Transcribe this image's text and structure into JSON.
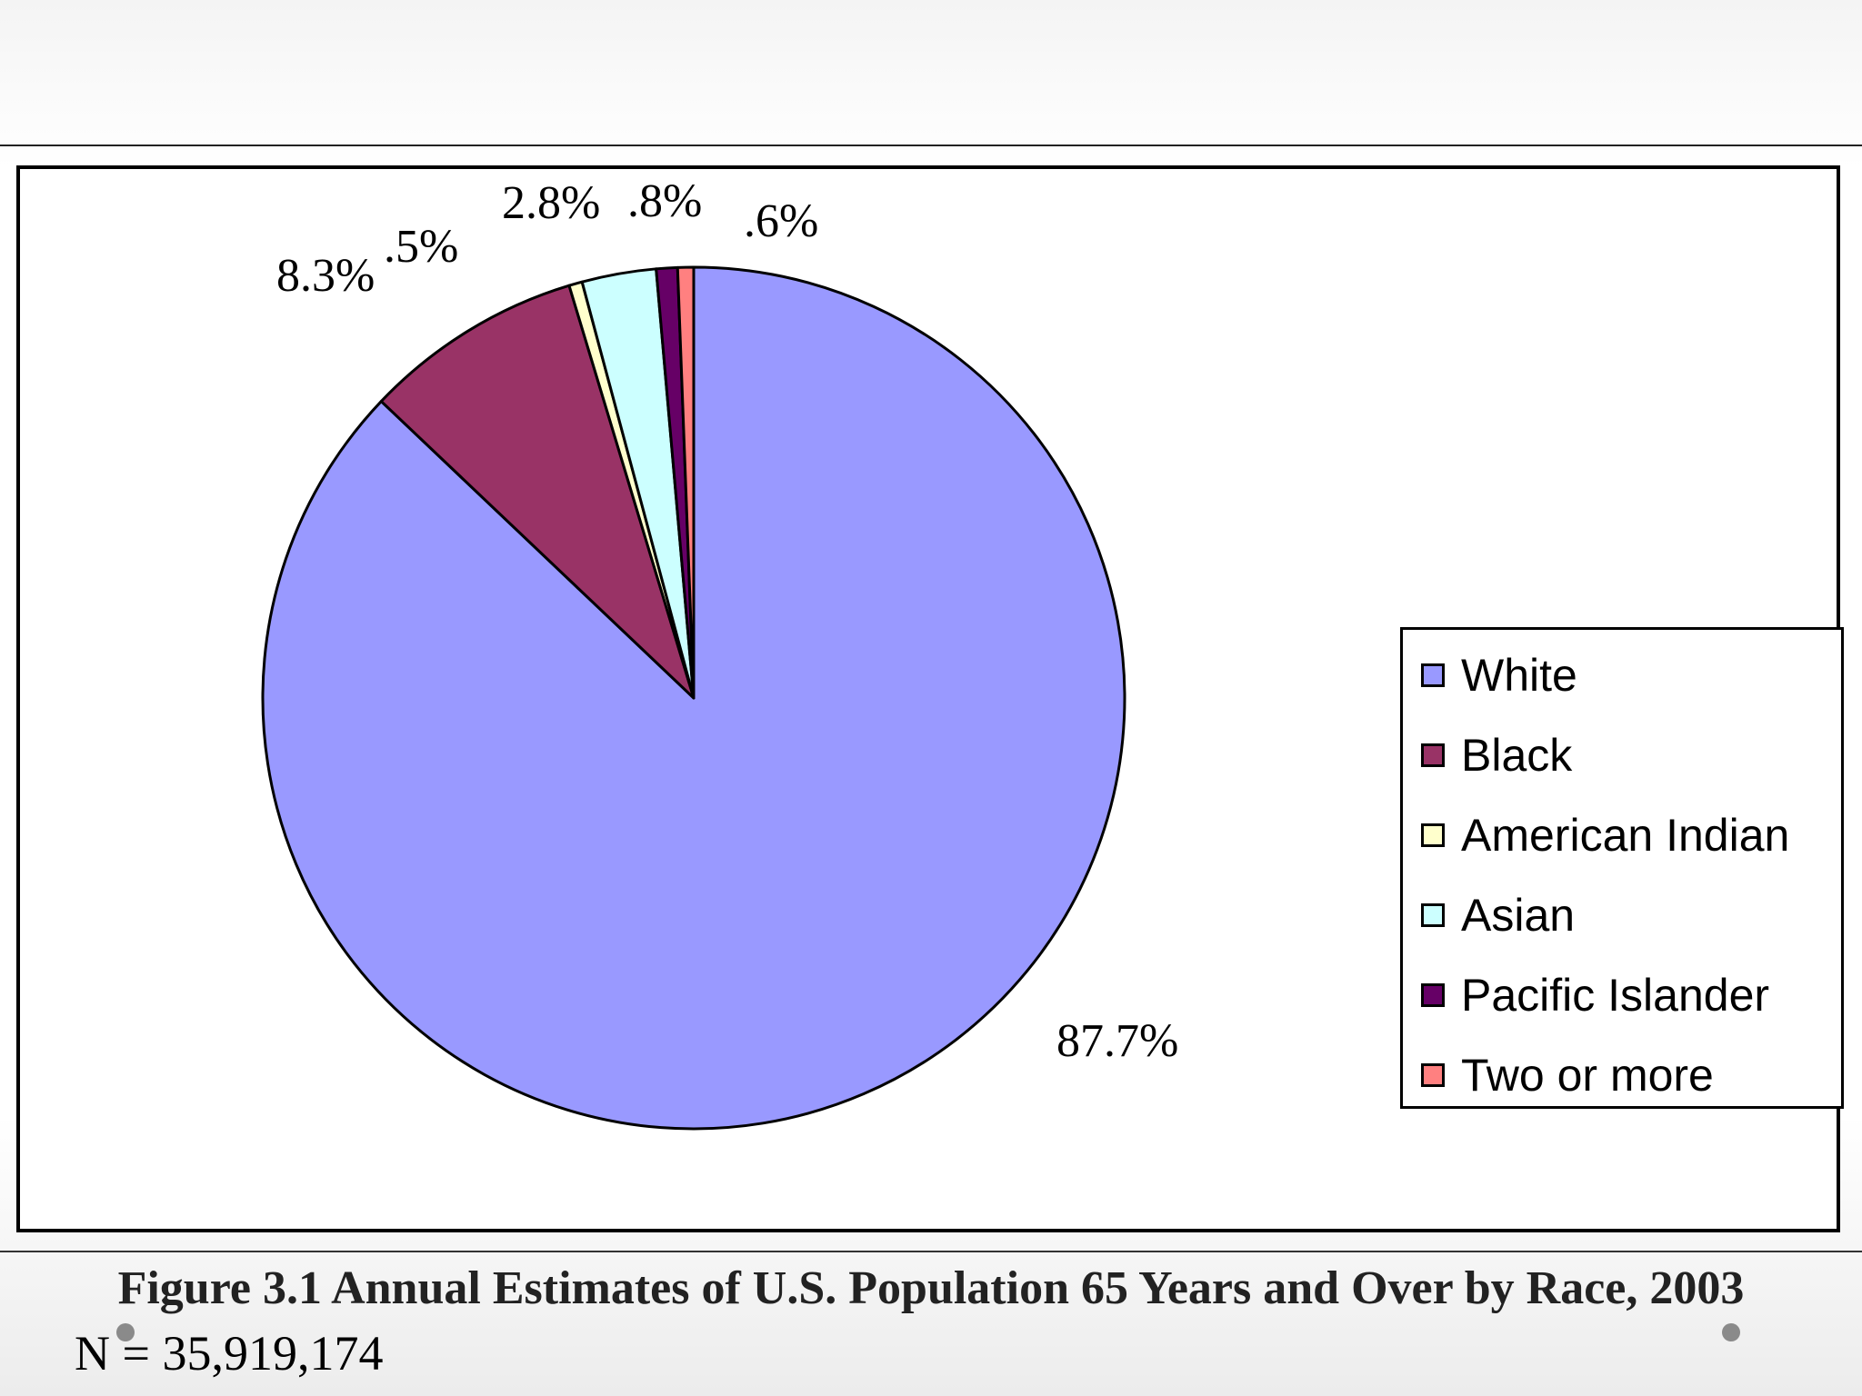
{
  "chart_data": {
    "type": "pie",
    "categories": [
      "White",
      "Black",
      "American Indian",
      "Asian",
      "Pacific Islander",
      "Two or more"
    ],
    "values": [
      87.7,
      8.3,
      0.5,
      2.8,
      0.8,
      0.6
    ],
    "value_labels": [
      "87.7%",
      "8.3%",
      ".5%",
      "2.8%",
      ".8%",
      ".6%"
    ],
    "colors": [
      "#9999ff",
      "#993366",
      "#ffffcc",
      "#ccffff",
      "#660066",
      "#ff8080"
    ],
    "start_angle": "12 o'clock",
    "direction": "clockwise",
    "legend_position": "right",
    "annotation": "N = 35,919,174",
    "caption": "Figure 3.1 Annual Estimates of U.S. Population 65 Years and Over by Race, 2003"
  }
}
